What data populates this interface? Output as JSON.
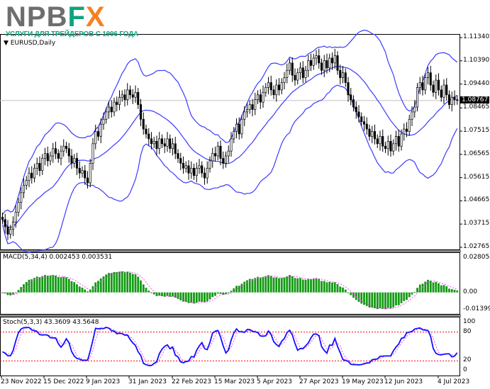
{
  "logo": {
    "text": "NPBFX",
    "subtitle": "УСЛУГИ ДЛЯ ТРЕЙДЕРОВ С 1996 ГОДА"
  },
  "chart_data": {
    "type": "candlestick",
    "symbol_label": "EURUSD,Daily",
    "current_price": "1.08767",
    "price_axis": {
      "ticks": [
        "1.11340",
        "1.10390",
        "1.09440",
        "1.08465",
        "1.07515",
        "1.06565",
        "1.05615",
        "1.04665",
        "1.03715",
        "1.02765"
      ],
      "range": [
        1.02765,
        1.1134
      ]
    },
    "date_labels": [
      "23 Nov 2022",
      "15 Dec 2022",
      "9 Jan 2023",
      "31 Jan 2023",
      "22 Feb 2023",
      "15 Mar 2023",
      "5 Apr 2023",
      "27 Apr 2023",
      "19 May 2023",
      "12 Jun 2023",
      "4 Jul 2023"
    ],
    "closes": [
      1.039,
      1.036,
      1.033,
      1.035,
      1.038,
      1.042,
      1.046,
      1.05,
      1.053,
      1.055,
      1.058,
      1.056,
      1.06,
      1.062,
      1.059,
      1.064,
      1.066,
      1.063,
      1.065,
      1.068,
      1.066,
      1.064,
      1.067,
      1.069,
      1.068,
      1.065,
      1.062,
      1.064,
      1.06,
      1.058,
      1.059,
      1.056,
      1.054,
      1.062,
      1.07,
      1.075,
      1.073,
      1.078,
      1.08,
      1.083,
      1.085,
      1.083,
      1.087,
      1.086,
      1.089,
      1.09,
      1.088,
      1.092,
      1.09,
      1.089,
      1.091,
      1.086,
      1.08,
      1.076,
      1.074,
      1.072,
      1.07,
      1.071,
      1.068,
      1.072,
      1.07,
      1.069,
      1.072,
      1.068,
      1.07,
      1.066,
      1.064,
      1.062,
      1.06,
      1.061,
      1.058,
      1.06,
      1.057,
      1.06,
      1.061,
      1.058,
      1.056,
      1.06,
      1.063,
      1.066,
      1.065,
      1.069,
      1.064,
      1.062,
      1.065,
      1.067,
      1.072,
      1.075,
      1.078,
      1.074,
      1.08,
      1.083,
      1.084,
      1.086,
      1.084,
      1.088,
      1.09,
      1.087,
      1.091,
      1.093,
      1.095,
      1.092,
      1.09,
      1.094,
      1.092,
      1.095,
      1.097,
      1.1,
      1.103,
      1.098,
      1.096,
      1.099,
      1.101,
      1.097,
      1.1,
      1.104,
      1.102,
      1.105,
      1.106,
      1.103,
      1.1,
      1.104,
      1.101,
      1.105,
      1.103,
      1.106,
      1.1,
      1.097,
      1.099,
      1.095,
      1.09,
      1.088,
      1.085,
      1.083,
      1.081,
      1.079,
      1.078,
      1.076,
      1.073,
      1.075,
      1.072,
      1.07,
      1.073,
      1.069,
      1.068,
      1.071,
      1.067,
      1.07,
      1.073,
      1.069,
      1.074,
      1.076,
      1.075,
      1.08,
      1.083,
      1.085,
      1.093,
      1.095,
      1.092,
      1.097,
      1.099,
      1.094,
      1.091,
      1.096,
      1.092,
      1.089,
      1.094,
      1.09,
      1.086,
      1.089,
      1.088,
      1.0877
    ],
    "bollinger": {
      "period": 20,
      "deviation": 2,
      "color": "#3b3bff"
    },
    "macd": {
      "label": "MACD(5,34,4) 0.002453 0.003531",
      "ticks": [
        "0.028054",
        "0.00",
        "-0.013996"
      ],
      "range": [
        -0.013996,
        0.028054
      ],
      "histogram_color": "#129a12",
      "signal_color": "#ff40ff"
    },
    "stochastic": {
      "label": "Stoch(5,3,3) 43.3609 43.5648",
      "ticks": [
        "100",
        "80",
        "20",
        "0"
      ],
      "levels": [
        80,
        20
      ],
      "main_color": "#1010ff",
      "signal_color": "#ff40ff",
      "level_color": "#ff0000"
    }
  }
}
